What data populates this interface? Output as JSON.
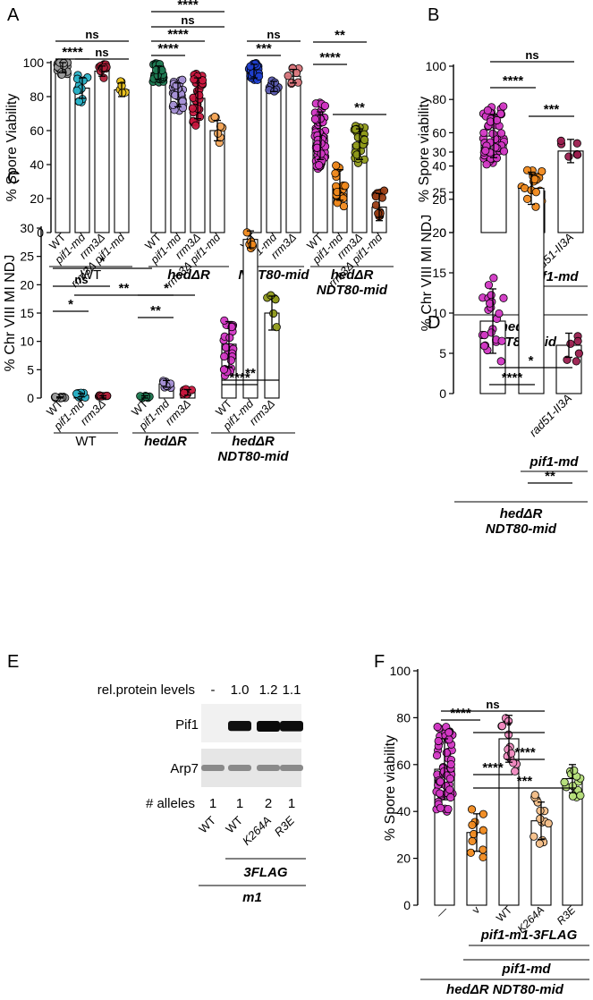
{
  "panels": [
    {
      "id": "A",
      "letter": "A",
      "ylabel": "% Spore Viability",
      "ylim": [
        0,
        100
      ],
      "yticks": [
        0,
        20,
        40,
        60,
        80,
        100
      ],
      "chart_data": {
        "type": "bar",
        "categories": [
          "WT",
          "pif1-md",
          "rrm3Δ",
          "rrm3Δ pif1-md",
          "WT",
          "pif1-md",
          "rrm3Δ",
          "rrm3Δ pif1-md",
          "WT",
          "pif1-md",
          "rrm3Δ",
          "WT",
          "pif1-md",
          "rrm3Δ",
          "rrm3Δ pif1-md"
        ],
        "category_italic": [
          false,
          true,
          true,
          true,
          false,
          true,
          true,
          true,
          false,
          true,
          true,
          false,
          true,
          true,
          true
        ],
        "values": [
          97,
          85,
          95,
          84,
          94,
          81,
          79,
          60,
          95,
          86,
          92,
          57,
          28,
          52,
          15
        ],
        "errors": [
          3,
          6,
          3,
          4,
          4,
          7,
          12,
          6,
          4,
          3,
          4,
          14,
          9,
          9,
          8
        ],
        "colors": [
          "#9e9e9e",
          "#2ab3c8",
          "#b3203a",
          "#e9c11c",
          "#1f7a52",
          "#a791d6",
          "#c9173e",
          "#f4a65a",
          "#1f3fd0",
          "#5a5ab0",
          "#d9757b",
          "#d237c4",
          "#f0891c",
          "#8f9a1a",
          "#9a3d14"
        ],
        "n_points": [
          40,
          14,
          14,
          6,
          40,
          30,
          30,
          8,
          30,
          8,
          8,
          60,
          24,
          24,
          14
        ],
        "groups": [
          {
            "label": "WT",
            "italic": false,
            "start": 0,
            "end": 3
          },
          {
            "label": "hedΔR",
            "italic": true,
            "start": 4,
            "end": 7
          },
          {
            "label": "NDT80-mid",
            "italic": true,
            "start": 8,
            "end": 10
          },
          {
            "label": "hedΔR NDT80-mid",
            "italic": true,
            "start": 11,
            "end": 14
          }
        ],
        "significance": [
          {
            "a": 0,
            "b": 3,
            "label": "ns"
          },
          {
            "a": 0,
            "b": 1,
            "label": "****"
          },
          {
            "a": 1,
            "b": 3,
            "label": "ns"
          },
          {
            "a": 4,
            "b": 7,
            "label": "****"
          },
          {
            "a": 4,
            "b": 7,
            "label": "ns"
          },
          {
            "a": 4,
            "b": 6,
            "label": "****"
          },
          {
            "a": 4,
            "b": 5,
            "label": "****"
          },
          {
            "a": 8,
            "b": 10,
            "label": "ns"
          },
          {
            "a": 8,
            "b": 9,
            "label": "***"
          },
          {
            "a": 11,
            "b": 13,
            "label": "**"
          },
          {
            "a": 11,
            "b": 12,
            "label": "****"
          },
          {
            "a": 12,
            "b": 14,
            "label": "**"
          }
        ]
      }
    },
    {
      "id": "B",
      "letter": "B",
      "ylabel": "% Spore viability",
      "ylim": [
        0,
        100
      ],
      "yticks": [
        0,
        20,
        40,
        60,
        80,
        100
      ],
      "chart_data": {
        "type": "bar",
        "categories": [
          "",
          "",
          "rad51-II3A"
        ],
        "category_italic": [
          true,
          true,
          true
        ],
        "values": [
          58,
          25,
          49
        ],
        "errors": [
          13,
          10,
          7
        ],
        "colors": [
          "#d237c4",
          "#f0891c",
          "#9a1e4e"
        ],
        "n_points": [
          60,
          24,
          6
        ],
        "groups": [
          {
            "label": "pif1-md",
            "italic": true,
            "start": 1,
            "end": 2
          },
          {
            "label": "hedΔR NDT80-mid",
            "italic": true,
            "start": 0,
            "end": 2
          }
        ],
        "significance": [
          {
            "a": 0,
            "b": 2,
            "label": "ns"
          },
          {
            "a": 0,
            "b": 1,
            "label": "****"
          },
          {
            "a": 1,
            "b": 2,
            "label": "***"
          }
        ]
      }
    },
    {
      "id": "C",
      "letter": "C",
      "ylabel": "% Chr VIII MI NDJ",
      "ylim": [
        0,
        30
      ],
      "yticks": [
        0,
        5,
        10,
        15,
        20,
        25,
        30
      ],
      "chart_data": {
        "type": "bar",
        "categories": [
          "WT",
          "pif1-md",
          "rrm3Δ",
          "WT",
          "pif1-md",
          "rrm3Δ",
          "WT",
          "pif1-md",
          "rrm3Δ"
        ],
        "category_italic": [
          false,
          true,
          true,
          false,
          true,
          true,
          false,
          true,
          true
        ],
        "values": [
          0.1,
          0.5,
          0.2,
          0.2,
          2.5,
          1.0,
          9.5,
          28,
          15
        ],
        "errors": [
          0.1,
          0.3,
          0.2,
          0.2,
          0.6,
          0.5,
          4,
          1.5,
          3
        ],
        "colors": [
          "#9e9e9e",
          "#2ab3c8",
          "#b3203a",
          "#1f7a52",
          "#a791d6",
          "#c9173e",
          "#d237c4",
          "#f0891c",
          "#8f9a1a"
        ],
        "n_points": [
          12,
          12,
          8,
          8,
          8,
          6,
          28,
          6,
          6
        ],
        "groups": [
          {
            "label": "WT",
            "italic": false,
            "start": 0,
            "end": 2
          },
          {
            "label": "hedΔR",
            "italic": true,
            "start": 3,
            "end": 5
          },
          {
            "label": "hedΔR NDT80-mid",
            "italic": true,
            "start": 6,
            "end": 8
          }
        ],
        "significance": [
          {
            "a": 0,
            "b": 3,
            "label": "*"
          },
          {
            "a": 0,
            "b": 2,
            "label": "ns"
          },
          {
            "a": 0,
            "b": 1,
            "label": "*"
          },
          {
            "a": 1,
            "b": 4,
            "label": "**"
          },
          {
            "a": 3,
            "b": 5,
            "label": "*"
          },
          {
            "a": 3,
            "b": 4,
            "label": "**"
          },
          {
            "a": 6,
            "b": 8,
            "label": "**"
          },
          {
            "a": 6,
            "b": 7,
            "label": "****"
          }
        ]
      }
    },
    {
      "id": "D",
      "letter": "D",
      "ylabel": "% Chr VIII MI NDJ",
      "ylim": [
        0,
        30
      ],
      "yticks": [
        0,
        5,
        10,
        15,
        20,
        25,
        30
      ],
      "chart_data": {
        "type": "bar",
        "categories": [
          "",
          "",
          "rad51-II3A"
        ],
        "category_italic": [
          true,
          true,
          true
        ],
        "values": [
          9,
          25.5,
          6
        ],
        "errors": [
          4,
          2,
          1.5
        ],
        "colors": [
          "#d237c4",
          "#f0891c",
          "#9a1e4e"
        ],
        "n_points": [
          24,
          6,
          6
        ],
        "groups": [
          {
            "label": "pif1-md",
            "italic": true,
            "start": 1,
            "end": 2
          },
          {
            "label": "hedΔR NDT80-mid",
            "italic": true,
            "start": 0,
            "end": 2
          }
        ],
        "significance": [
          {
            "a": 0,
            "b": 2,
            "label": "*"
          },
          {
            "a": 0,
            "b": 1,
            "label": "****"
          },
          {
            "a": 1,
            "b": 2,
            "label": "**"
          }
        ]
      }
    },
    {
      "id": "F",
      "letter": "F",
      "ylabel": "% Spore viability",
      "ylim": [
        0,
        100
      ],
      "yticks": [
        0,
        20,
        40,
        60,
        80,
        100
      ],
      "chart_data": {
        "type": "bar",
        "categories": [
          "—",
          "v",
          "WT",
          "K264A",
          "R3E"
        ],
        "category_italic": [
          false,
          false,
          false,
          true,
          true
        ],
        "values": [
          58,
          31,
          71,
          36,
          54
        ],
        "errors": [
          13,
          8,
          10,
          8,
          6
        ],
        "colors": [
          "#d237c4",
          "#f0891c",
          "#ef89bf",
          "#f5c08a",
          "#b6e07a"
        ],
        "n_points": [
          60,
          10,
          14,
          14,
          14
        ],
        "groups": [
          {
            "label": "pif1-m1-3FLAG",
            "italic": true,
            "start": 2,
            "end": 4
          },
          {
            "label": "pif1-md",
            "italic": true,
            "start": 1,
            "end": 4
          },
          {
            "label": "hedΔR NDT80-mid",
            "italic": true,
            "start": 0,
            "end": 4
          }
        ],
        "significance": [
          {
            "a": 0,
            "b": 3,
            "label": "ns"
          },
          {
            "a": 0,
            "b": 1,
            "label": "****"
          },
          {
            "a": 1,
            "b": 3,
            "label": "*"
          },
          {
            "a": 2,
            "b": 3,
            "label": "****"
          },
          {
            "a": 1,
            "b": 2,
            "label": "****"
          },
          {
            "a": 1,
            "b": 4,
            "label": "***"
          }
        ]
      }
    }
  ],
  "blot": {
    "letter": "E",
    "rel_label": "rel.protein levels",
    "rel_values": [
      "-",
      "1.0",
      "1.2",
      "1.1"
    ],
    "band_intensity": [
      0,
      0.8,
      1.0,
      0.9
    ],
    "rows": [
      "Pif1",
      "Arp7"
    ],
    "alleles_label": "# alleles",
    "allele_values": [
      "1",
      "1",
      "2",
      "1"
    ],
    "lanes": [
      "WT",
      "WT",
      "K264A",
      "R3E"
    ],
    "lanes_italic": [
      false,
      false,
      true,
      true
    ],
    "group_3flag": "3FLAG",
    "group_m1": "m1"
  }
}
